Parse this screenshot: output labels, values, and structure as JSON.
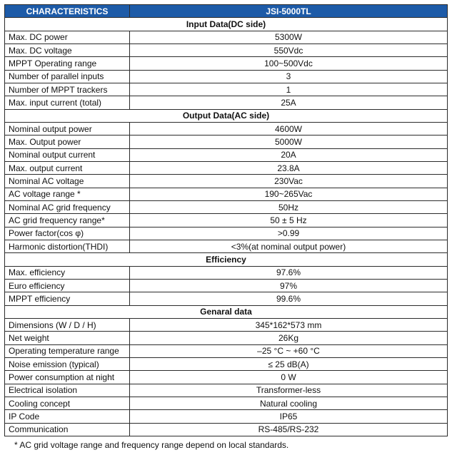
{
  "header": {
    "col1": "CHARACTERISTICS",
    "col2": "JSI-5000TL"
  },
  "sections": [
    {
      "title": "Input Data(DC side)",
      "rows": [
        {
          "label": "Max. DC power",
          "value": "5300W"
        },
        {
          "label": "Max. DC voltage",
          "value": "550Vdc"
        },
        {
          "label": "MPPT Operating range",
          "value": "100~500Vdc"
        },
        {
          "label": "Number of parallel inputs",
          "value": "3"
        },
        {
          "label": "Number of MPPT trackers",
          "value": "1"
        },
        {
          "label": "Max. input current (total)",
          "value": "25A"
        }
      ]
    },
    {
      "title": "Output Data(AC side)",
      "rows": [
        {
          "label": "Nominal output power",
          "value": "4600W"
        },
        {
          "label": "Max. Output power",
          "value": "5000W"
        },
        {
          "label": "Nominal output current",
          "value": "20A"
        },
        {
          "label": "Max. output current",
          "value": "23.8A"
        },
        {
          "label": "Nominal AC voltage",
          "value": "230Vac"
        },
        {
          "label": "AC voltage range *",
          "value": "190~265Vac"
        },
        {
          "label": "Nominal AC grid frequency",
          "value": "50Hz"
        },
        {
          "label": "AC grid frequency range*",
          "value": "50 ± 5 Hz"
        },
        {
          "label": "Power factor(cos φ)",
          "value": ">0.99"
        },
        {
          "label": "Harmonic distortion(THDI)",
          "value": "<3%(at nominal output power)"
        }
      ]
    },
    {
      "title": "Efficiency",
      "rows": [
        {
          "label": "Max. efficiency",
          "value": "97.6%"
        },
        {
          "label": "Euro efficiency",
          "value": "97%"
        },
        {
          "label": "MPPT efficiency",
          "value": "99.6%"
        }
      ]
    },
    {
      "title": "Genaral data",
      "rows": [
        {
          "label": "Dimensions (W / D / H)",
          "value": "345*162*573 mm"
        },
        {
          "label": "Net weight",
          "value": "26Kg"
        },
        {
          "label": "Operating temperature range",
          "value": "–25 °C ~ +60 °C"
        },
        {
          "label": "Noise emission (typical)",
          "value": "≤ 25 dB(A)"
        },
        {
          "label": "Power consumption at night",
          "value": "0 W"
        },
        {
          "label": "Electrical isolation",
          "value": "Transformer-less"
        },
        {
          "label": "Cooling concept",
          "value": "Natural cooling"
        },
        {
          "label": "IP Code",
          "value": "IP65"
        },
        {
          "label": "Communication",
          "value": "RS-485/RS-232"
        }
      ]
    }
  ],
  "footnote": "* AC grid voltage range and frequency range depend on local standards."
}
